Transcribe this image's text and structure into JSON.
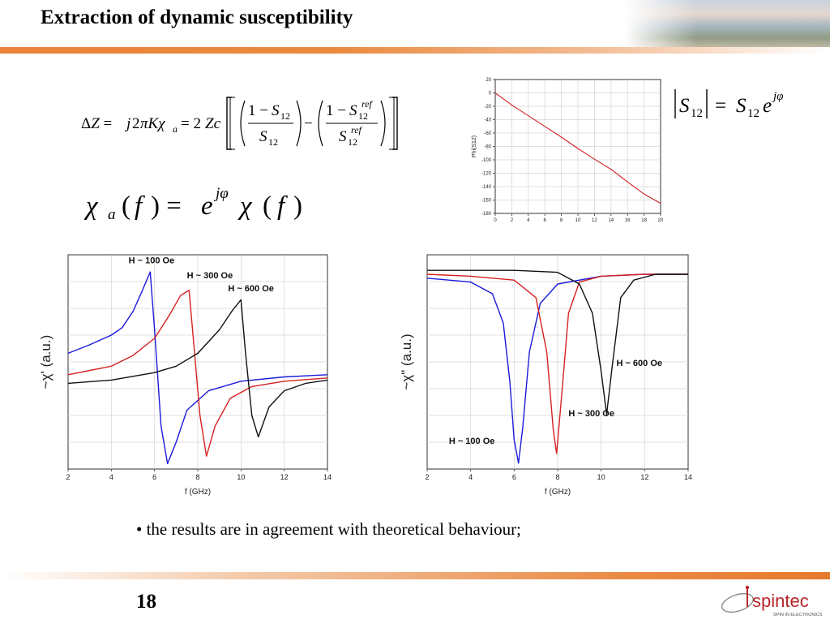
{
  "slide": {
    "title": "Extraction of dynamic susceptibility",
    "page_number": "18",
    "bullet": "• the results are in agreement with theoretical behaviour;",
    "logo_text": "spintec",
    "logo_tagline": "SPIN IN ELECTRONICS"
  },
  "colors": {
    "accent": "#e9843a",
    "blue": "#1a1adb",
    "red": "#d62020",
    "black": "#111111",
    "logo_red": "#b8252b"
  },
  "equations": {
    "impedance": "ΔZ = j2πKχa = 2Zc[(1 − S12)/S12 − (1 − S12ref)/S12ref]",
    "transmission": "|S12| = S12 e^(jφ)",
    "susceptibility": "χa(f) = e^(jφ) χ(f)"
  },
  "chart_data": [
    {
      "type": "line",
      "title": "",
      "xlabel": "",
      "ylabel": "Phi(S12)",
      "xlim": [
        0,
        20
      ],
      "ylim": [
        -180,
        20
      ],
      "xticks": [
        0,
        2,
        4,
        6,
        8,
        10,
        12,
        14,
        16,
        18,
        20
      ],
      "yticks": [
        20,
        0,
        -20,
        -40,
        -60,
        -80,
        -100,
        -120,
        -140,
        -160,
        -180
      ],
      "series": [
        {
          "color": "#d62020",
          "x": [
            0,
            1,
            2,
            4,
            6,
            8,
            10,
            12,
            14,
            16,
            18,
            20
          ],
          "y": [
            0,
            -9,
            -18,
            -34,
            -50,
            -66,
            -83,
            -99,
            -114,
            -133,
            -151,
            -165
          ]
        }
      ]
    },
    {
      "type": "line",
      "title": "",
      "xlabel": "f (GHz)",
      "ylabel": "~χ' (a.u.)",
      "xlim": [
        2,
        14
      ],
      "ylim": [
        -1,
        1
      ],
      "xticks": [
        2,
        4,
        6,
        8,
        10,
        12,
        14
      ],
      "series": [
        {
          "name": "H ~ 100 Oe",
          "color": "#1a1adb",
          "x": [
            2,
            3,
            4,
            4.5,
            5,
            5.4,
            5.8,
            6.0,
            6.3,
            6.6,
            7.0,
            7.5,
            8.5,
            10,
            12,
            14
          ],
          "y": [
            0.08,
            0.16,
            0.25,
            0.32,
            0.47,
            0.65,
            0.84,
            0.3,
            -0.6,
            -0.95,
            -0.75,
            -0.45,
            -0.27,
            -0.18,
            -0.14,
            -0.12
          ]
        },
        {
          "name": "H ~ 300 Oe",
          "color": "#d62020",
          "x": [
            2,
            4,
            5,
            6,
            6.7,
            7.2,
            7.6,
            7.8,
            8.1,
            8.4,
            8.8,
            9.5,
            10.5,
            12,
            14
          ],
          "y": [
            -0.12,
            -0.04,
            0.06,
            0.22,
            0.44,
            0.62,
            0.67,
            0.2,
            -0.5,
            -0.88,
            -0.6,
            -0.34,
            -0.23,
            -0.18,
            -0.15
          ]
        },
        {
          "name": "H ~ 600 Oe",
          "color": "#111111",
          "x": [
            2,
            4,
            6,
            7,
            8,
            9,
            9.6,
            10.0,
            10.2,
            10.5,
            10.8,
            11.3,
            12,
            13,
            14
          ],
          "y": [
            -0.2,
            -0.17,
            -0.1,
            -0.04,
            0.08,
            0.3,
            0.48,
            0.58,
            0.1,
            -0.5,
            -0.7,
            -0.42,
            -0.27,
            -0.2,
            -0.17
          ]
        }
      ]
    },
    {
      "type": "line",
      "title": "",
      "xlabel": "f (GHz)",
      "ylabel": "~χ\" (a.u.)",
      "xlim": [
        2,
        14
      ],
      "ylim": [
        -1,
        0.1
      ],
      "xticks": [
        2,
        4,
        6,
        8,
        10,
        12,
        14
      ],
      "series": [
        {
          "name": "H ~ 100 Oe",
          "color": "#1a1adb",
          "x": [
            2,
            3,
            4,
            5,
            5.5,
            5.8,
            6.0,
            6.2,
            6.4,
            6.7,
            7.2,
            8,
            10,
            12,
            14
          ],
          "y": [
            -0.02,
            -0.03,
            -0.04,
            -0.1,
            -0.25,
            -0.55,
            -0.85,
            -0.97,
            -0.78,
            -0.4,
            -0.15,
            -0.05,
            -0.01,
            0.0,
            0.0
          ]
        },
        {
          "name": "H ~ 300 Oe",
          "color": "#d62020",
          "x": [
            2,
            4,
            6,
            7,
            7.5,
            7.8,
            7.95,
            8.2,
            8.5,
            9,
            10,
            12,
            14
          ],
          "y": [
            0.0,
            -0.01,
            -0.03,
            -0.12,
            -0.4,
            -0.8,
            -0.92,
            -0.6,
            -0.2,
            -0.04,
            -0.01,
            0.0,
            0.0
          ]
        },
        {
          "name": "H ~ 600 Oe",
          "color": "#111111",
          "x": [
            2,
            6,
            8,
            9,
            9.6,
            10.0,
            10.25,
            10.5,
            10.9,
            11.5,
            12.5,
            14
          ],
          "y": [
            0.02,
            0.02,
            0.01,
            -0.05,
            -0.2,
            -0.5,
            -0.72,
            -0.48,
            -0.12,
            -0.03,
            0.0,
            0.0
          ]
        }
      ]
    }
  ]
}
